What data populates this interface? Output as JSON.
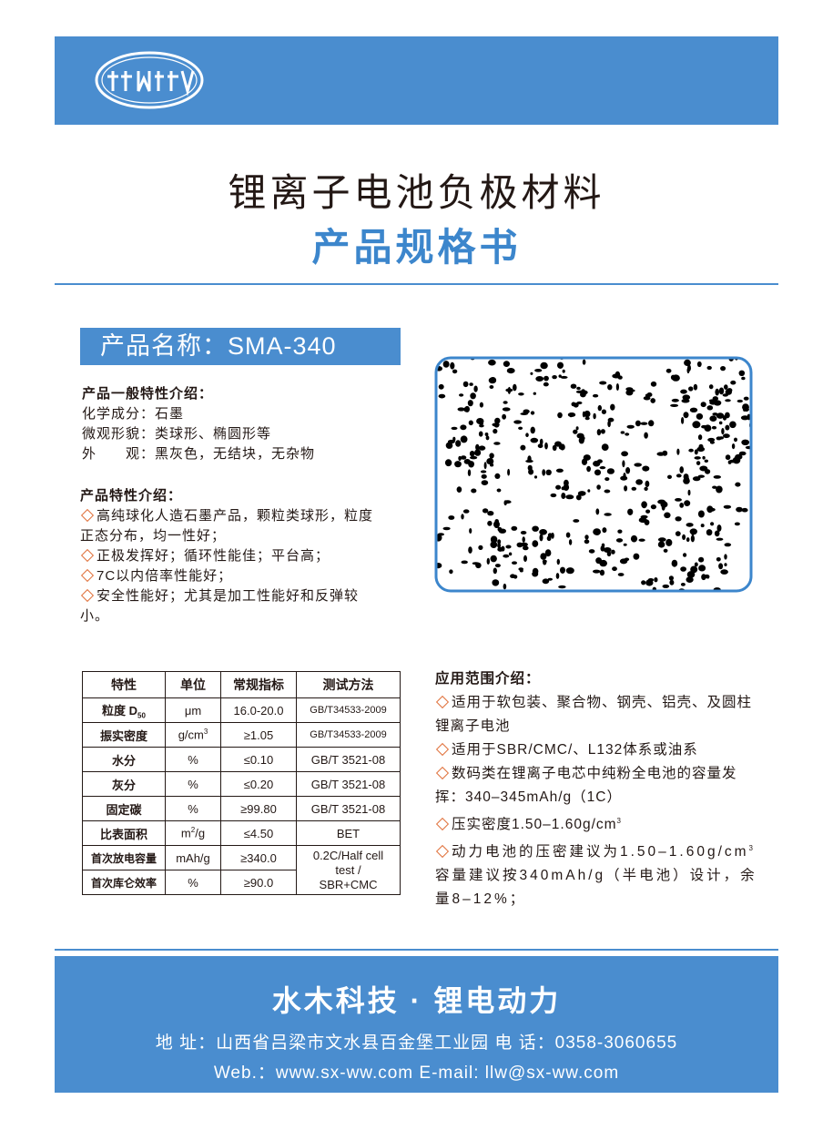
{
  "header": {
    "title": "锂离子电池负极材料",
    "subtitle": "产品规格书"
  },
  "product_name": "产品名称：SMA-340",
  "general": {
    "heading": "产品一般特性介绍：",
    "items": [
      "化学成分：石墨",
      "微观形貌：类球形、椭圆形等",
      "外　　观：黑灰色，无结块，无杂物"
    ]
  },
  "features": {
    "heading": "产品特性介绍：",
    "items": [
      "高纯球化人造石墨产品，颗粒类球形，粒度正态分布，均一性好；",
      "正极发挥好；循环性能佳；平台高；",
      "7C以内倍率性能好；",
      "安全性能好；尤其是加工性能好和反弹较小。"
    ]
  },
  "table": {
    "header": [
      "特性",
      "单位",
      "常规指标",
      "测试方法"
    ],
    "rows": [
      [
        {
          "text": "粒度 D",
          "sub": "50"
        },
        "μm",
        "16.0-20.0",
        "GB/T34533-2009"
      ],
      [
        "振实密度",
        {
          "text": "g/cm",
          "sup": "3"
        },
        "≥1.05",
        "GB/T34533-2009"
      ],
      [
        "水分",
        "%",
        "≤0.10",
        "GB/T 3521-08"
      ],
      [
        "灰分",
        "%",
        "≤0.20",
        "GB/T 3521-08"
      ],
      [
        "固定碳",
        "%",
        "≥99.80",
        "GB/T 3521-08"
      ],
      [
        "比表面积",
        {
          "text": "m",
          "sup": "2",
          "rest": "/g"
        },
        "≤4.50",
        "BET"
      ],
      [
        "首次放电容量",
        "mAh/g",
        "≥340.0",
        "0.2C/Half cell test / SBR+CMC"
      ],
      [
        "首次库仑效率",
        "%",
        "≥90.0"
      ]
    ]
  },
  "applications": {
    "heading": "应用范围介绍：",
    "items": [
      "适用于软包装、聚合物、钢壳、铝壳、及圆柱锂离子电池",
      "适用于SBR/CMC/、L132体系或油系",
      "数码类在锂离子电芯中纯粉全电池的容量发挥：340–345mAh/g（1C）",
      {
        "text": "压实密度1.50–1.60g/cm",
        "sup": "3"
      },
      {
        "text": "动力电池的压密建议为1.50–1.60g/cm",
        "sup": "3",
        "rest": "容量建议按340mAh/g（半电池）设计，余量8–12%；"
      }
    ]
  },
  "footer": {
    "slogan": "水木科技 · 锂电动力",
    "address": "地 址：山西省吕梁市文水县百金堡工业园 电 话：0358-3060655",
    "web": "Web.：www.sx-ww.com E-mail: llw@sx-ww.com"
  }
}
